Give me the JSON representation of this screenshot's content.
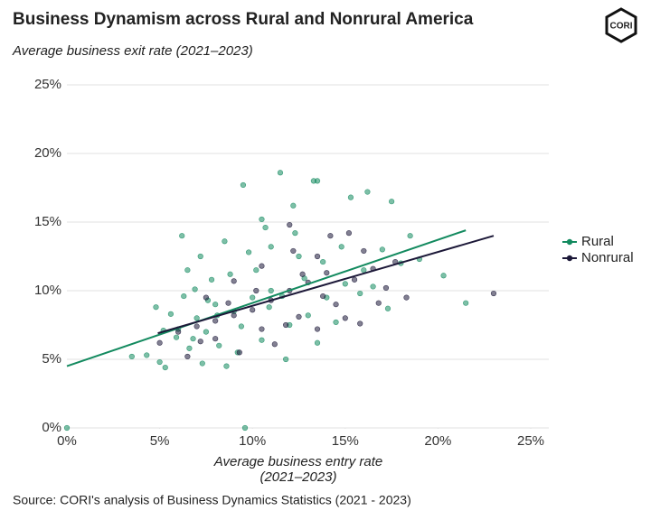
{
  "chart_data": {
    "type": "scatter",
    "title": "Business Dynamism across Rural and Nonrural America",
    "subtitle": "Average business exit rate (2021–2023)",
    "xlabel": [
      "Average business entry rate",
      "(2021–2023)"
    ],
    "source": "Source: CORI's analysis of Business Dynamics Statistics (2021 - 2023)",
    "logo": "CORI",
    "xlim": [
      0,
      25
    ],
    "ylim": [
      0,
      25
    ],
    "xticks": [
      {
        "value": 0,
        "label": "0%"
      },
      {
        "value": 5,
        "label": "5%"
      },
      {
        "value": 10,
        "label": "10%"
      },
      {
        "value": 15,
        "label": "15%"
      },
      {
        "value": 20,
        "label": "20%"
      },
      {
        "value": 25,
        "label": "25%"
      }
    ],
    "yticks": [
      {
        "value": 0,
        "label": "0%"
      },
      {
        "value": 5,
        "label": "5%"
      },
      {
        "value": 10,
        "label": "10%"
      },
      {
        "value": 15,
        "label": "15%"
      },
      {
        "value": 20,
        "label": "20%"
      },
      {
        "value": 25,
        "label": "25%"
      }
    ],
    "grid": true,
    "legend": "right",
    "series": [
      {
        "name": "Rural",
        "color": "#138a5f",
        "x": [
          11.5,
          13.3,
          13.5,
          9.5,
          16.2,
          17.5,
          15.3,
          12.2,
          10.5,
          6.2,
          21.5,
          20.3,
          3.5,
          5,
          5.3,
          0,
          9.6,
          19,
          17.3,
          4.8,
          8.5,
          7.2,
          6.5,
          8,
          7,
          7.5,
          9,
          10,
          11,
          6,
          6.8,
          8.2,
          9.2,
          10.5,
          12,
          13,
          14,
          15,
          16,
          17,
          18,
          12.5,
          11,
          9.8,
          8.8,
          7.8,
          6.3,
          5.6,
          5.2,
          6.6,
          7.3,
          8.6,
          11.8,
          13.5,
          14.5,
          15.8,
          16.5,
          10.2,
          12.8,
          13.8,
          9.4,
          8.1,
          10.9,
          11.6,
          7.6,
          6.9,
          5.9,
          14.8,
          4.3,
          18.5,
          12.3,
          10.7
        ],
        "y": [
          18.6,
          18,
          18,
          17.7,
          17.2,
          16.5,
          16.8,
          16.2,
          15.2,
          14,
          9.1,
          11.1,
          5.2,
          4.8,
          4.4,
          0,
          0,
          12.3,
          8.7,
          8.8,
          13.6,
          12.5,
          11.5,
          9,
          8,
          7,
          8.5,
          9.5,
          10,
          7.2,
          6.5,
          6,
          5.5,
          6.4,
          7.5,
          8.2,
          9.5,
          10.5,
          11.5,
          13,
          12,
          12.5,
          13.2,
          12.8,
          11.2,
          10.8,
          9.6,
          8.3,
          7.1,
          5.8,
          4.7,
          4.5,
          5,
          6.2,
          7.7,
          9.8,
          10.3,
          11.5,
          10.9,
          12.1,
          7.4,
          8.2,
          8.8,
          9.6,
          9.3,
          10.1,
          6.6,
          13.2,
          5.3,
          14,
          14.2,
          14.6
        ]
      },
      {
        "name": "Nonrural",
        "color": "#1c1838",
        "x": [
          23,
          17.7,
          15.2,
          12,
          13.5,
          14,
          13,
          12,
          11,
          10,
          9,
          8,
          7,
          6,
          5,
          6.5,
          8,
          10.5,
          12.5,
          14.5,
          15.5,
          16.5,
          15,
          13.5,
          11.2,
          9.3,
          7.5,
          9,
          10.5,
          12.2,
          14.2,
          16,
          17.2,
          11.8,
          13.8,
          12.7,
          10.2,
          8.7,
          7.2,
          15.8,
          18.3,
          16.8
        ],
        "y": [
          9.8,
          12.1,
          14.2,
          14.8,
          12.5,
          11.3,
          10.6,
          10,
          9.3,
          8.6,
          8.2,
          7.8,
          7.4,
          7,
          6.2,
          5.2,
          6.5,
          7.2,
          8.1,
          9,
          10.8,
          11.6,
          8,
          7.2,
          6.1,
          5.5,
          9.5,
          10.7,
          11.8,
          12.9,
          14,
          12.9,
          10.2,
          7.5,
          9.6,
          11.2,
          10,
          9.1,
          6.3,
          7.6,
          9.5,
          9.1
        ]
      }
    ],
    "trend_lines": [
      {
        "color": "#138a5f",
        "x": [
          0,
          21.5
        ],
        "y": [
          4.5,
          14.4
        ]
      },
      {
        "color": "#1c1838",
        "x": [
          4.9,
          23
        ],
        "y": [
          6.9,
          14
        ]
      }
    ]
  }
}
